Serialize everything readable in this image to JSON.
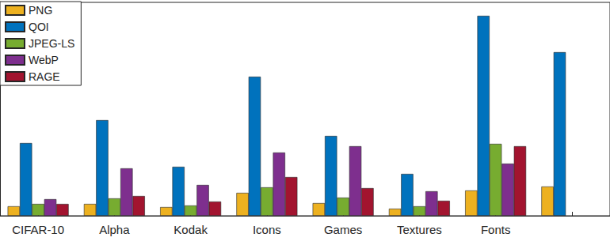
{
  "chart_data": {
    "type": "bar",
    "categories": [
      "CIFAR-10",
      "Alpha",
      "Kodak",
      "Icons",
      "Games",
      "Textures",
      "Fonts",
      null
    ],
    "series": [
      {
        "name": "PNG",
        "color": "#EDB120",
        "values": [
          12,
          15,
          11,
          29,
          16,
          9,
          32,
          37
        ]
      },
      {
        "name": "QOI",
        "color": "#0072BD",
        "values": [
          92,
          121,
          62,
          176,
          101,
          53,
          253,
          207
        ]
      },
      {
        "name": "JPEG-LS",
        "color": "#77AC30",
        "values": [
          15,
          22,
          13,
          36,
          23,
          12,
          91,
          null
        ]
      },
      {
        "name": "WebP",
        "color": "#7E2F8E",
        "values": [
          21,
          60,
          39,
          80,
          88,
          31,
          66,
          null
        ]
      },
      {
        "name": "RAGE",
        "color": "#A2142F",
        "values": [
          15,
          25,
          18,
          49,
          35,
          19,
          88,
          null
        ]
      }
    ],
    "ylim": [
      0,
      270
    ],
    "grid": false,
    "legend": "upper left",
    "tick_labels": "x"
  }
}
